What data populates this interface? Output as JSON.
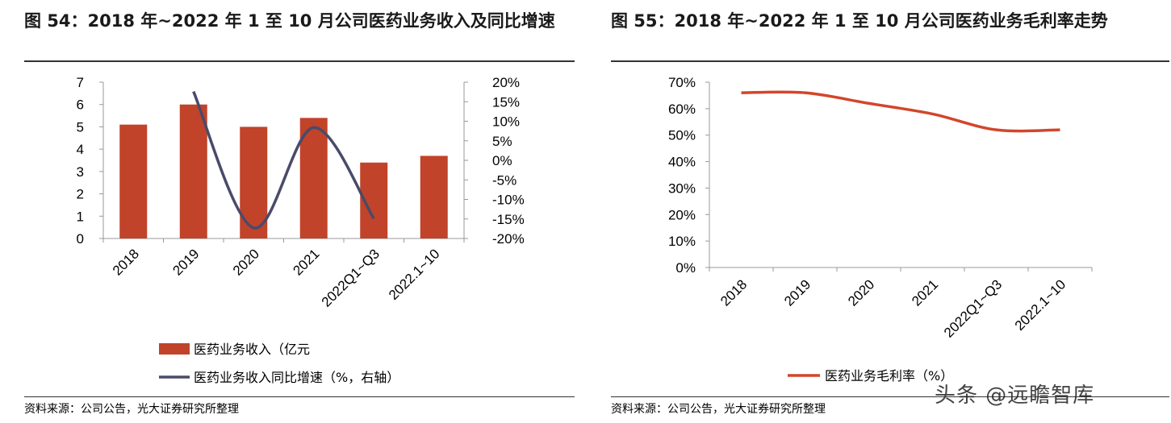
{
  "watermark": "头条 @远瞻智库",
  "left": {
    "title": "图 54：2018 年~2022 年 1 至 10 月公司医药业务收入及同比增速",
    "source": "资料来源：公司公告，光大证券研究所整理"
  },
  "right": {
    "title": "图 55：2018 年~2022 年 1 至 10 月公司医药业务毛利率走势",
    "source": "资料来源：公司公告，光大证券研究所整理"
  },
  "chart_data": [
    {
      "type": "bar",
      "categories": [
        "2018",
        "2019",
        "2020",
        "2021",
        "2022Q1~Q3",
        "2022.1~10"
      ],
      "series": [
        {
          "name": "医药业务收入（亿元",
          "type": "bar",
          "axis": "left",
          "values": [
            5.1,
            6.0,
            5.0,
            5.4,
            3.4,
            3.7
          ],
          "color": "#c1432a"
        },
        {
          "name": "医药业务收入同比增速（%，右轴）",
          "type": "line",
          "axis": "right",
          "values": [
            null,
            17.6,
            -17.3,
            8.4,
            -14.9,
            null
          ],
          "color": "#4a4a6a"
        }
      ],
      "ylim_left": [
        0,
        7
      ],
      "yticks_left": [
        "0",
        "1",
        "2",
        "3",
        "4",
        "5",
        "6",
        "7"
      ],
      "ylim_right": [
        -20,
        20
      ],
      "yticks_right": [
        "-20%",
        "-15%",
        "-10%",
        "-5%",
        "0%",
        "5%",
        "10%",
        "15%",
        "20%"
      ],
      "grid": false,
      "legend": "bottom"
    },
    {
      "type": "line",
      "categories": [
        "2018",
        "2019",
        "2020",
        "2021",
        "2022Q1~Q3",
        "2022.1~10"
      ],
      "series": [
        {
          "name": "医药业务毛利率（%）",
          "values": [
            66,
            66,
            62,
            58,
            52,
            52
          ],
          "color": "#d2462b"
        }
      ],
      "ylim": [
        0,
        70
      ],
      "yticks": [
        "0%",
        "10%",
        "20%",
        "30%",
        "40%",
        "50%",
        "60%",
        "70%"
      ],
      "grid": false,
      "legend": "bottom"
    }
  ]
}
